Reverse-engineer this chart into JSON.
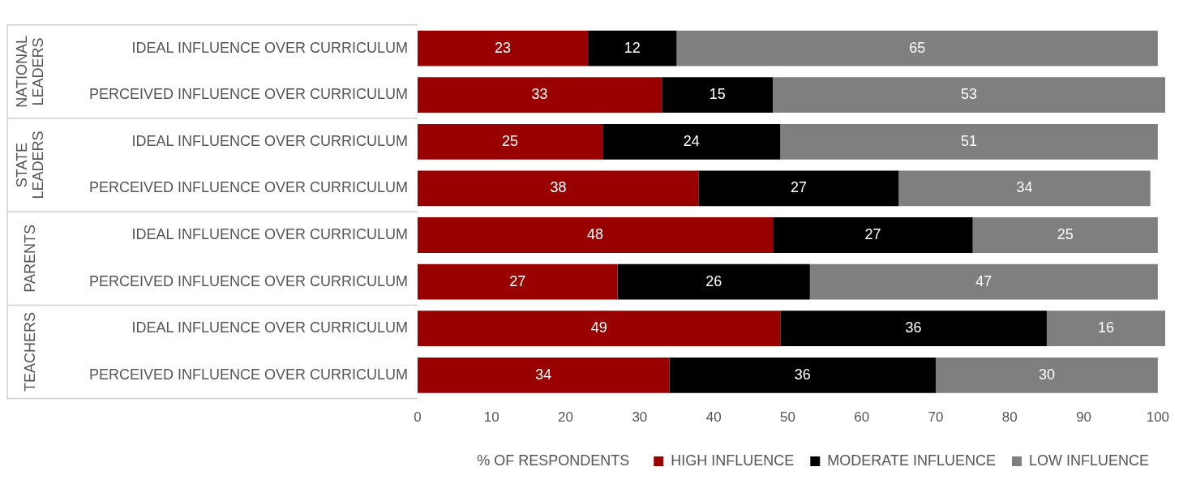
{
  "chart_data": {
    "type": "bar",
    "orientation": "horizontal",
    "stacked": true,
    "categories": [
      "IDEAL INFLUENCE OVER CURRICULUM",
      "PERCEIVED INFLUENCE OVER CURRICULUM",
      "IDEAL INFLUENCE OVER CURRICULUM",
      "PERCEIVED INFLUENCE OVER CURRICULUM",
      "IDEAL INFLUENCE OVER CURRICULUM",
      "PERCEIVED INFLUENCE OVER CURRICULUM",
      "IDEAL INFLUENCE OVER CURRICULUM",
      "PERCEIVED INFLUENCE OVER CURRICULUM"
    ],
    "series": [
      {
        "name": "HIGH INFLUENCE",
        "color": "#990000",
        "values": [
          23,
          33,
          25,
          38,
          48,
          27,
          49,
          34
        ]
      },
      {
        "name": "MODERATE INFLUENCE",
        "color": "#000000",
        "values": [
          12,
          15,
          24,
          27,
          27,
          26,
          36,
          36
        ]
      },
      {
        "name": "LOW INFLUENCE",
        "color": "#7f7f7f",
        "values": [
          65,
          53,
          51,
          34,
          25,
          47,
          16,
          30
        ]
      }
    ],
    "xlim": [
      0,
      101
    ],
    "xticks": [
      0,
      10,
      20,
      30,
      40,
      50,
      60,
      70,
      80,
      90,
      100
    ],
    "xlabel": "% OF RESPONDENTS",
    "annotations": [
      "NATIONAL\nLEADERS",
      "STATE\nLEADERS",
      "PARENTS",
      "TEACHERS"
    ],
    "data_labels": true,
    "grid": false,
    "legend": "bottom"
  }
}
